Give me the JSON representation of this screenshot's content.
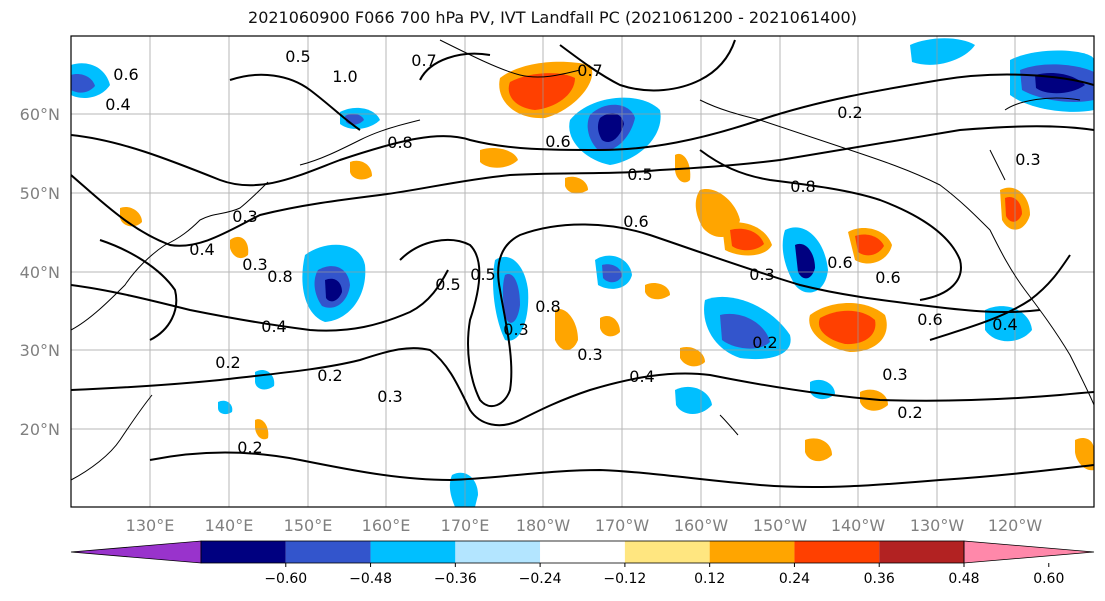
{
  "title": "2021060900 F066 700 hPa PV, IVT Landfall PC (2021061200 - 2021061400)",
  "lat_labels": [
    "60°N",
    "50°N",
    "40°N",
    "30°N",
    "20°N"
  ],
  "lon_labels": [
    "130°E",
    "140°E",
    "150°E",
    "160°E",
    "170°E",
    "180°W",
    "170°W",
    "160°W",
    "150°W",
    "140°W",
    "130°W",
    "120°W"
  ],
  "contour_labels": [
    "0.7",
    "0.6",
    "0.5",
    "0.4",
    "1.0",
    "0.7",
    "0.8",
    "0.3",
    "0.6",
    "0.5",
    "0.8",
    "0.6",
    "0.3",
    "0.4",
    "0.5",
    "0.8",
    "0.3",
    "0.6",
    "0.6",
    "0.8",
    "0.4",
    "0.5",
    "0.3",
    "0.6",
    "0.4",
    "0.2",
    "0.3",
    "0.2",
    "0.2",
    "0.3",
    "0.4",
    "0.2",
    "0.3",
    "0.2",
    "0.3",
    "0.2"
  ],
  "colorbar": {
    "colors": [
      "#9933cc",
      "#000080",
      "#3355cc",
      "#00bfff",
      "#b3e5ff",
      "#ffffff",
      "#ffe680",
      "#ffa500",
      "#ff4000",
      "#b22222",
      "#ff88aa"
    ],
    "tick_labels": [
      "−0.60",
      "−0.48",
      "−0.36",
      "−0.24",
      "−0.12",
      "0.12",
      "0.24",
      "0.36",
      "0.48",
      "0.60"
    ]
  }
}
